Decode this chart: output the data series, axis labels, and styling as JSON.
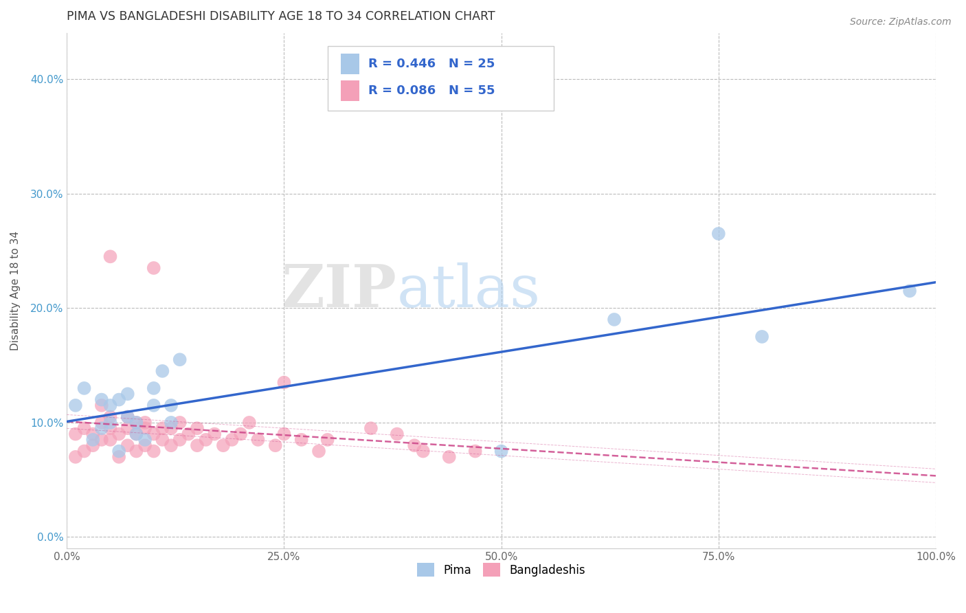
{
  "title": "PIMA VS BANGLADESHI DISABILITY AGE 18 TO 34 CORRELATION CHART",
  "source": "Source: ZipAtlas.com",
  "ylabel": "Disability Age 18 to 34",
  "xlim": [
    0,
    1.0
  ],
  "ylim": [
    -0.01,
    0.44
  ],
  "xticks": [
    0.0,
    0.25,
    0.5,
    0.75,
    1.0
  ],
  "xticklabels": [
    "0.0%",
    "25.0%",
    "50.0%",
    "75.0%",
    "100.0%"
  ],
  "yticks": [
    0.0,
    0.1,
    0.2,
    0.3,
    0.4
  ],
  "yticklabels": [
    "0.0%",
    "10.0%",
    "20.0%",
    "30.0%",
    "40.0%"
  ],
  "watermark_zip": "ZIP",
  "watermark_atlas": "atlas",
  "legend_r_blue": "R = 0.446",
  "legend_n_blue": "N = 25",
  "legend_r_pink": "R = 0.086",
  "legend_n_pink": "N = 55",
  "blue_scatter_color": "#a8c8e8",
  "pink_scatter_color": "#f4a0b8",
  "blue_line_color": "#3366cc",
  "pink_line_color": "#cc4488",
  "grid_color": "#bbbbbb",
  "background_color": "#ffffff",
  "title_color": "#333333",
  "pima_x": [
    0.01,
    0.02,
    0.03,
    0.04,
    0.04,
    0.05,
    0.05,
    0.06,
    0.06,
    0.07,
    0.07,
    0.08,
    0.08,
    0.09,
    0.1,
    0.1,
    0.11,
    0.12,
    0.12,
    0.13,
    0.5,
    0.63,
    0.75,
    0.8,
    0.97
  ],
  "pima_y": [
    0.115,
    0.13,
    0.085,
    0.12,
    0.095,
    0.1,
    0.115,
    0.075,
    0.12,
    0.105,
    0.125,
    0.09,
    0.1,
    0.085,
    0.13,
    0.115,
    0.145,
    0.1,
    0.115,
    0.155,
    0.075,
    0.19,
    0.265,
    0.175,
    0.215
  ],
  "bangladeshi_x": [
    0.01,
    0.01,
    0.02,
    0.02,
    0.03,
    0.03,
    0.04,
    0.04,
    0.04,
    0.05,
    0.05,
    0.05,
    0.06,
    0.06,
    0.07,
    0.07,
    0.07,
    0.08,
    0.08,
    0.08,
    0.09,
    0.09,
    0.09,
    0.1,
    0.1,
    0.11,
    0.11,
    0.12,
    0.12,
    0.13,
    0.13,
    0.14,
    0.15,
    0.15,
    0.16,
    0.17,
    0.18,
    0.19,
    0.2,
    0.21,
    0.22,
    0.24,
    0.25,
    0.27,
    0.29,
    0.3,
    0.35,
    0.38,
    0.4,
    0.41,
    0.44,
    0.47,
    0.05,
    0.1,
    0.25
  ],
  "bangladeshi_y": [
    0.07,
    0.09,
    0.075,
    0.095,
    0.08,
    0.09,
    0.085,
    0.1,
    0.115,
    0.085,
    0.095,
    0.105,
    0.07,
    0.09,
    0.08,
    0.095,
    0.105,
    0.075,
    0.09,
    0.1,
    0.08,
    0.095,
    0.1,
    0.075,
    0.09,
    0.085,
    0.095,
    0.08,
    0.095,
    0.085,
    0.1,
    0.09,
    0.08,
    0.095,
    0.085,
    0.09,
    0.08,
    0.085,
    0.09,
    0.1,
    0.085,
    0.08,
    0.09,
    0.085,
    0.075,
    0.085,
    0.095,
    0.09,
    0.08,
    0.075,
    0.07,
    0.075,
    0.245,
    0.235,
    0.135
  ]
}
